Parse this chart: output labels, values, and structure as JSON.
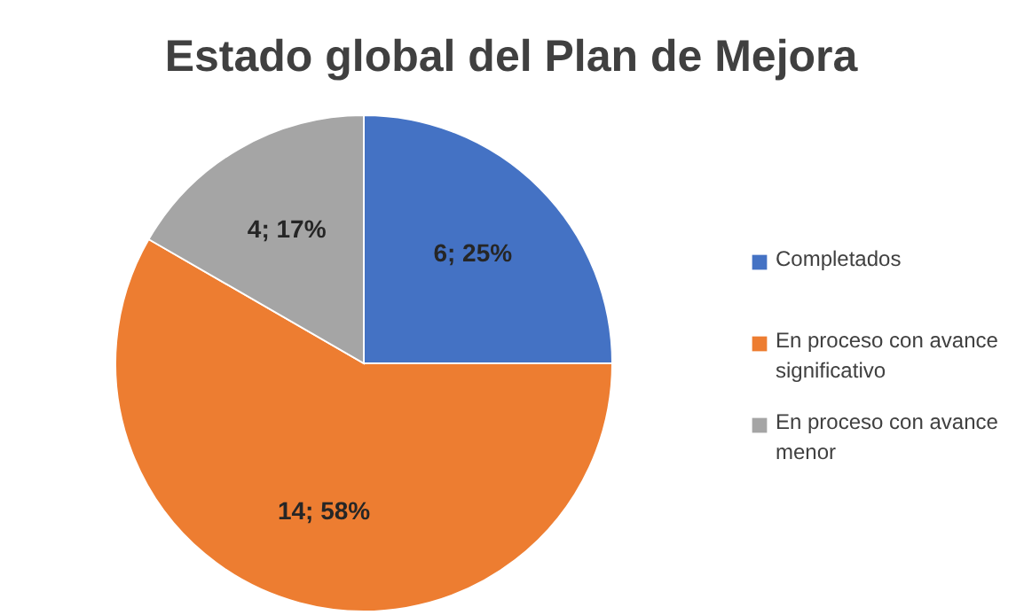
{
  "chart_data": {
    "type": "pie",
    "title": "Estado global del Plan de Mejora",
    "categories": [
      "Completados",
      "En proceso con avance significativo",
      "En proceso con avance menor"
    ],
    "values": [
      6,
      14,
      4
    ],
    "colors": [
      "#4472c4",
      "#ed7d31",
      "#a5a5a5"
    ],
    "value_labels": [
      "6; 25%",
      "14; 58%",
      "4; 17%"
    ],
    "legend": "right"
  }
}
